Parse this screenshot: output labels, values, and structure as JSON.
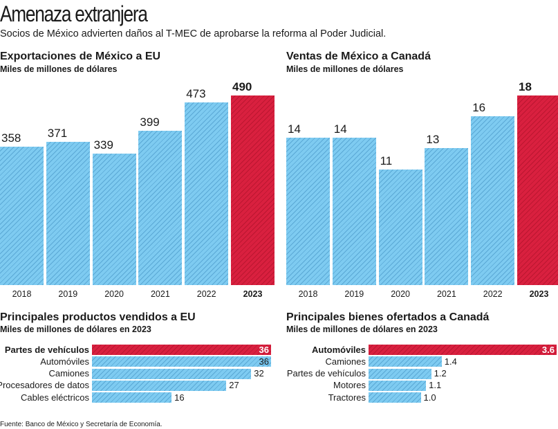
{
  "header": {
    "title": "Amenaza extranjera",
    "subtitle": "Socios de México advierten daños al T-MEC de aprobarse la reforma al Poder Judicial."
  },
  "colors": {
    "normal": "#7ecbf1",
    "highlight": "#d9203f"
  },
  "chart_data": [
    {
      "type": "bar",
      "title": "Exportaciones de México a EU",
      "subtitle": "Miles de millones de dólares",
      "categories": [
        "2018",
        "2019",
        "2020",
        "2021",
        "2022",
        "2023"
      ],
      "values": [
        358,
        371,
        339,
        399,
        473,
        490
      ],
      "highlight": "2023",
      "ylim": [
        0,
        490
      ]
    },
    {
      "type": "bar",
      "title": "Ventas de México a Canadá",
      "subtitle": "Miles de millones de dólares",
      "categories": [
        "2018",
        "2019",
        "2020",
        "2021",
        "2022",
        "2023"
      ],
      "values": [
        14,
        14,
        11,
        13,
        16,
        18
      ],
      "highlight": "2023",
      "ylim": [
        0,
        18
      ]
    },
    {
      "type": "bar",
      "orientation": "horizontal",
      "title": "Principales productos vendidos a EU",
      "subtitle": "Miles de millones de dólares en 2023",
      "categories": [
        "Partes de vehículos",
        "Automóviles",
        "Camiones",
        "Procesadores de datos",
        "Cables eléctricos"
      ],
      "values": [
        36,
        36,
        32,
        27,
        16
      ],
      "labels": [
        "36",
        "36",
        "32",
        "27",
        "16"
      ],
      "highlight": "Partes de vehículos",
      "xlim": [
        0,
        36
      ]
    },
    {
      "type": "bar",
      "orientation": "horizontal",
      "title": "Principales bienes ofertados a Canadá",
      "subtitle": "Miles de millones de dólares en 2023",
      "categories": [
        "Automóviles",
        "Camiones",
        "Partes de vehículos",
        "Motores",
        "Tractores"
      ],
      "values": [
        3.6,
        1.4,
        1.2,
        1.1,
        1.0
      ],
      "labels": [
        "3.6",
        "1.4",
        "1.2",
        "1.1",
        "1.0"
      ],
      "highlight": "Automóviles",
      "xlim": [
        0,
        3.6
      ]
    }
  ],
  "source": "Fuente: Banco de México y Secretaría de Economía."
}
